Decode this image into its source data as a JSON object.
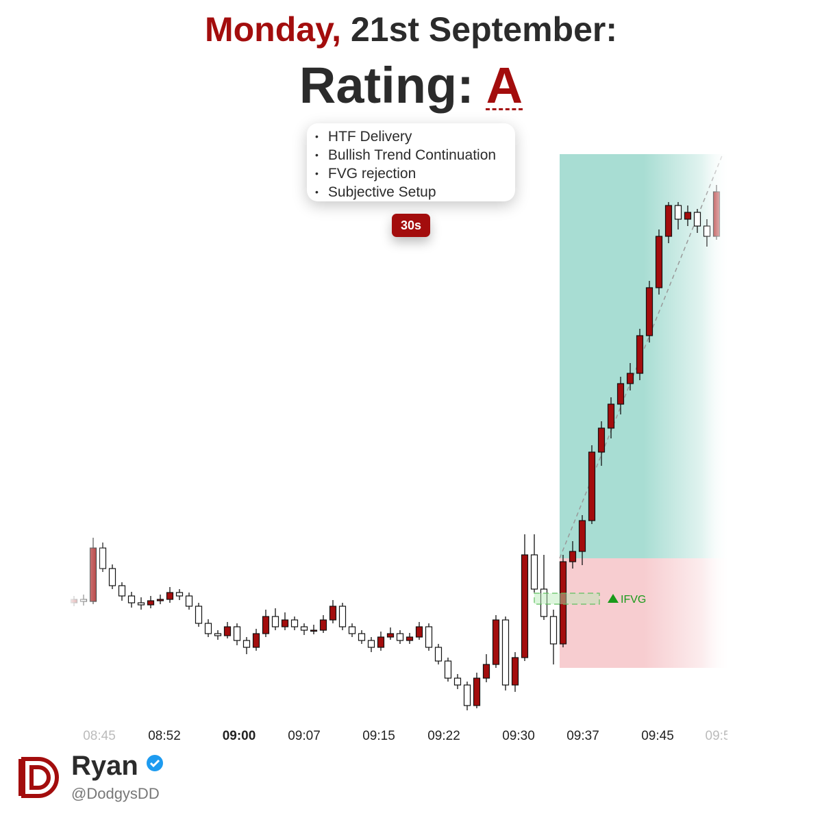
{
  "header": {
    "day": "Monday,",
    "date": "21st September:",
    "rating_label": "Rating:",
    "rating": "A"
  },
  "checklist": [
    "HTF Delivery",
    "Bullish Trend Continuation",
    "FVG rejection",
    "Subjective Setup"
  ],
  "timeframe_badge": "30s",
  "chart_data": {
    "type": "candlestick",
    "ylim": [
      0,
      90
    ],
    "candles": [
      [
        22,
        23,
        21.5,
        22.5
      ],
      [
        22.5,
        23.2,
        21.6,
        22.2
      ],
      [
        22.2,
        31.5,
        21.8,
        30
      ],
      [
        30,
        30.8,
        26.5,
        27
      ],
      [
        27,
        27.6,
        24,
        24.5
      ],
      [
        24.5,
        25,
        22.3,
        23
      ],
      [
        23,
        23.6,
        21.3,
        22
      ],
      [
        22,
        22.8,
        21,
        21.7
      ],
      [
        21.7,
        23,
        21.2,
        22.3
      ],
      [
        22.3,
        23.2,
        21.8,
        22.5
      ],
      [
        22.5,
        24.3,
        22,
        23.5
      ],
      [
        23.5,
        24,
        22.4,
        23
      ],
      [
        23,
        23.5,
        21,
        21.5
      ],
      [
        21.5,
        22,
        18.5,
        19
      ],
      [
        19,
        19.6,
        17,
        17.5
      ],
      [
        17.5,
        18,
        16.6,
        17.2
      ],
      [
        17.2,
        19.2,
        16.8,
        18.5
      ],
      [
        18.5,
        19,
        15.8,
        16.5
      ],
      [
        16.5,
        17,
        14.5,
        15.5
      ],
      [
        15.5,
        18.2,
        15,
        17.5
      ],
      [
        17.5,
        21,
        17,
        20
      ],
      [
        20,
        21.2,
        18,
        18.5
      ],
      [
        18.5,
        20.6,
        18,
        19.5
      ],
      [
        19.5,
        20,
        18,
        18.5
      ],
      [
        18.5,
        19,
        17.3,
        18
      ],
      [
        18,
        18.8,
        17.4,
        18
      ],
      [
        18,
        20.2,
        17.6,
        19.5
      ],
      [
        19.5,
        22.4,
        19,
        21.5
      ],
      [
        21.5,
        22,
        18,
        18.5
      ],
      [
        18.5,
        19,
        17,
        17.5
      ],
      [
        17.5,
        18,
        16,
        16.5
      ],
      [
        16.5,
        17,
        14.8,
        15.5
      ],
      [
        15.5,
        17.8,
        15,
        17
      ],
      [
        17,
        18.4,
        16.6,
        17.5
      ],
      [
        17.5,
        18,
        16,
        16.5
      ],
      [
        16.5,
        17.6,
        16,
        17
      ],
      [
        17,
        19.2,
        16.6,
        18.5
      ],
      [
        18.5,
        19,
        15,
        15.5
      ],
      [
        15.5,
        16,
        13,
        13.5
      ],
      [
        13.5,
        14,
        10.5,
        11
      ],
      [
        11,
        11.6,
        9.4,
        10
      ],
      [
        10,
        10.5,
        6.3,
        7
      ],
      [
        7,
        11.8,
        6.6,
        11
      ],
      [
        11,
        14.5,
        10.4,
        13
      ],
      [
        13,
        20.2,
        12.5,
        19.5
      ],
      [
        19.5,
        20,
        9.2,
        10
      ],
      [
        10,
        14.8,
        9,
        14
      ],
      [
        14,
        32,
        13.5,
        29
      ],
      [
        29,
        32,
        23.5,
        24
      ],
      [
        24,
        29,
        19.5,
        20
      ],
      [
        20,
        21,
        13,
        16
      ],
      [
        16,
        29,
        15.5,
        28
      ],
      [
        28,
        31,
        27,
        29.5
      ],
      [
        29.5,
        34.8,
        27.5,
        34
      ],
      [
        34,
        45,
        33.5,
        44
      ],
      [
        44,
        48.5,
        42,
        47.5
      ],
      [
        47.5,
        52,
        46,
        51
      ],
      [
        51,
        55,
        49.5,
        54
      ],
      [
        54,
        57,
        53,
        55.5
      ],
      [
        55.5,
        62,
        54.5,
        61
      ],
      [
        61,
        69,
        60,
        68
      ],
      [
        68,
        76.5,
        67,
        75.5
      ],
      [
        75.5,
        80.5,
        74.5,
        80
      ],
      [
        80,
        80.5,
        76.5,
        78
      ],
      [
        78,
        80,
        77,
        79
      ],
      [
        79,
        79.5,
        76,
        77
      ],
      [
        77,
        78,
        74,
        75.5
      ],
      [
        75.5,
        83,
        75,
        82
      ]
    ],
    "up_color": "#a30d0d",
    "down_color": "#ffffff",
    "x_labels": [
      "08:45",
      "08:52",
      "09:00",
      "09:07",
      "09:15",
      "09:22",
      "09:30",
      "09:37",
      "09:45",
      "09:5"
    ],
    "position": {
      "target": 87.5,
      "entry": 28.5,
      "stop": 12.5
    },
    "fvg": {
      "top": 23.4,
      "bottom": 21.8,
      "label": "IFVG"
    }
  },
  "author": {
    "name": "Ryan",
    "handle": "@DodgysDD"
  }
}
